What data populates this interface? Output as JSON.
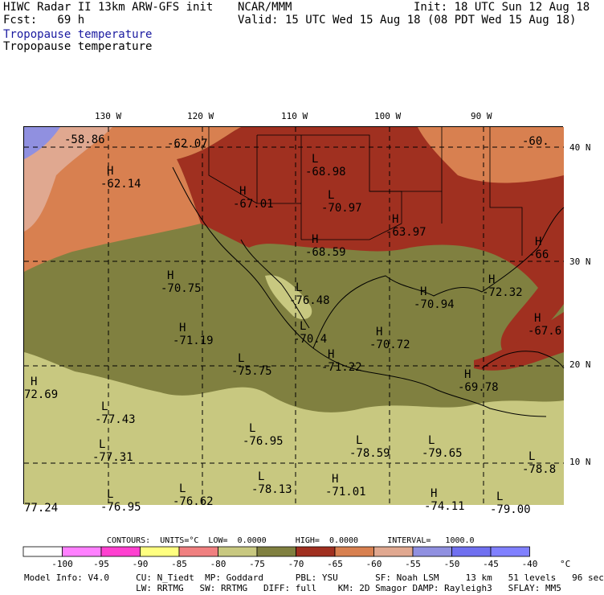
{
  "header": {
    "model_title": "HIWC Radar II 13km ARW-GFS init",
    "forecast": "Fcst:   69 h",
    "source": "NCAR/MMM",
    "init": "Init: 18 UTC Sun 12 Aug 18",
    "valid": "Valid: 15 UTC Wed 15 Aug 18 (08 PDT Wed 15 Aug 18)",
    "field_label_blue": "Tropopause temperature",
    "field_label": "Tropopause temperature"
  },
  "map": {
    "lon_labels": [
      "130 W",
      "120 W",
      "110 W",
      "100 W",
      "90 W"
    ],
    "lat_labels": [
      "40 N",
      "30 N",
      "20 N",
      "10 N"
    ],
    "annotations": [
      {
        "type": "text",
        "text": "-58.86"
      },
      {
        "type": "text",
        "text": "-62.07"
      },
      {
        "type": "text",
        "text": "-60."
      },
      {
        "type": "H",
        "text": "-62.14"
      },
      {
        "type": "L",
        "text": "-68.98"
      },
      {
        "type": "H",
        "text": "-67.01"
      },
      {
        "type": "L",
        "text": "-70.97"
      },
      {
        "type": "H",
        "text": "-63.97"
      },
      {
        "type": "H",
        "text": "-68.59"
      },
      {
        "type": "H",
        "text": "-66"
      },
      {
        "type": "H",
        "text": "-70.75"
      },
      {
        "type": "L",
        "text": "-76.48"
      },
      {
        "type": "H",
        "text": "-70.94"
      },
      {
        "type": "H",
        "text": "-72.32"
      },
      {
        "type": "H",
        "text": "-71.19"
      },
      {
        "type": "L",
        "text": "-70.4"
      },
      {
        "type": "H",
        "text": "-70.72"
      },
      {
        "type": "H",
        "text": "-67.6"
      },
      {
        "type": "L",
        "text": "-75.75"
      },
      {
        "type": "H",
        "text": "-71.22"
      },
      {
        "type": "H",
        "text": "-69.78"
      },
      {
        "type": "H",
        "text": "72.69"
      },
      {
        "type": "L",
        "text": "-77.43"
      },
      {
        "type": "L",
        "text": "-76.95"
      },
      {
        "type": "L",
        "text": "-78.59"
      },
      {
        "type": "L",
        "text": "-79.65"
      },
      {
        "type": "L",
        "text": "-77.31"
      },
      {
        "type": "L",
        "text": "-78.8"
      },
      {
        "type": "L",
        "text": "-76.62"
      },
      {
        "type": "L",
        "text": "-78.13"
      },
      {
        "type": "H",
        "text": "-71.01"
      },
      {
        "type": "H",
        "text": "-74.11"
      },
      {
        "type": "L",
        "text": "-76.95"
      },
      {
        "type": "text",
        "text": "77.24"
      },
      {
        "type": "L",
        "text": "-79.00"
      }
    ]
  },
  "contours_line": "CONTOURS:  UNITS=°C  LOW=  0.0000      HIGH=  0.0000      INTERVAL=   1000.0",
  "colorbar": {
    "colors": [
      "#ffffff",
      "#ff80ff",
      "#ff40d0",
      "#ffff80",
      "#f08080",
      "#c8c880",
      "#808040",
      "#a03020",
      "#d88050",
      "#e0a890",
      "#9090e0",
      "#7070f0",
      "#8080ff"
    ],
    "ticks": [
      "-100",
      "-95",
      "-90",
      "-85",
      "-80",
      "-75",
      "-70",
      "-65",
      "-60",
      "-55",
      "-50",
      "-45",
      "-40"
    ],
    "unit": "°C"
  },
  "footer": {
    "line1": "Model Info: V4.0     CU: N_Tiedt  MP: Goddard      PBL: YSU       SF: Noah LSM     13 km   51 levels   96 sec",
    "line2": "                     LW: RRTMG   SW: RRTMG   DIFF: full    KM: 2D Smagor DAMP: Rayleigh3   SFLAY: MM5"
  }
}
